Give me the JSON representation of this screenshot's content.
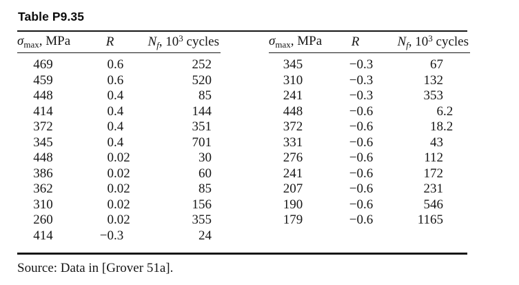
{
  "title": "Table P9.35",
  "headers": {
    "sigma": "σ",
    "sigma_sub": "max",
    "sigma_unit": ", MPa",
    "r": "R",
    "n": "N",
    "n_sub": "f",
    "n_mid": ", 10",
    "n_sup": "3",
    "n_unit": " cycles"
  },
  "left_table": {
    "rows": [
      [
        "469",
        "0.6",
        "252"
      ],
      [
        "459",
        "0.6",
        "520"
      ],
      [
        "448",
        "0.4",
        "85"
      ],
      [
        "414",
        "0.4",
        "144"
      ],
      [
        "372",
        "0.4",
        "351"
      ],
      [
        "345",
        "0.4",
        "701"
      ],
      [
        "448",
        "0.02",
        "30"
      ],
      [
        "386",
        "0.02",
        "60"
      ],
      [
        "362",
        "0.02",
        "85"
      ],
      [
        "310",
        "0.02",
        "156"
      ],
      [
        "260",
        "0.02",
        "355"
      ],
      [
        "414",
        "−0.3",
        "24"
      ]
    ]
  },
  "right_table": {
    "rows": [
      [
        "345",
        "−0.3",
        "67"
      ],
      [
        "310",
        "−0.3",
        "132"
      ],
      [
        "241",
        "−0.3",
        "353"
      ],
      [
        "448",
        "−0.6",
        "6.2"
      ],
      [
        "372",
        "−0.6",
        "18.2"
      ],
      [
        "331",
        "−0.6",
        "43"
      ],
      [
        "276",
        "−0.6",
        "112"
      ],
      [
        "241",
        "−0.6",
        "172"
      ],
      [
        "207",
        "−0.6",
        "231"
      ],
      [
        "190",
        "−0.6",
        "546"
      ],
      [
        "179",
        "−0.6",
        "1165"
      ]
    ]
  },
  "source": "Source: Data in [Grover 51a].",
  "colors": {
    "background": "#ffffff",
    "text": "#161616",
    "rule": "#161616"
  }
}
